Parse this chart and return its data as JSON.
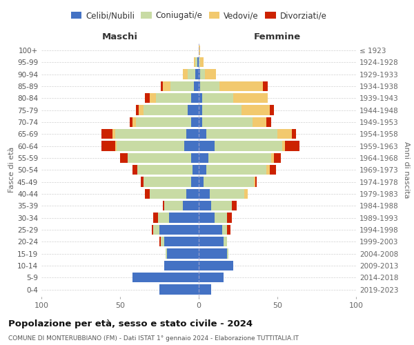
{
  "age_groups": [
    "0-4",
    "5-9",
    "10-14",
    "15-19",
    "20-24",
    "25-29",
    "30-34",
    "35-39",
    "40-44",
    "45-49",
    "50-54",
    "55-59",
    "60-64",
    "65-69",
    "70-74",
    "75-79",
    "80-84",
    "85-89",
    "90-94",
    "95-99",
    "100+"
  ],
  "birth_years": [
    "2019-2023",
    "2014-2018",
    "2009-2013",
    "2004-2008",
    "1999-2003",
    "1994-1998",
    "1989-1993",
    "1984-1988",
    "1979-1983",
    "1974-1978",
    "1969-1973",
    "1964-1968",
    "1959-1963",
    "1954-1958",
    "1949-1953",
    "1944-1948",
    "1939-1943",
    "1934-1938",
    "1929-1933",
    "1924-1928",
    "≤ 1923"
  ],
  "male": {
    "celibi": [
      25,
      42,
      22,
      20,
      22,
      25,
      19,
      10,
      8,
      5,
      4,
      5,
      9,
      8,
      5,
      7,
      5,
      3,
      2,
      1,
      0
    ],
    "coniugati": [
      0,
      0,
      0,
      1,
      2,
      4,
      7,
      12,
      23,
      30,
      35,
      40,
      43,
      45,
      35,
      28,
      22,
      15,
      5,
      1,
      0
    ],
    "vedovi": [
      0,
      0,
      0,
      0,
      0,
      0,
      0,
      0,
      0,
      0,
      0,
      0,
      1,
      2,
      2,
      3,
      4,
      5,
      3,
      1,
      0
    ],
    "divorziati": [
      0,
      0,
      0,
      0,
      1,
      1,
      3,
      1,
      3,
      2,
      3,
      5,
      9,
      7,
      2,
      2,
      3,
      1,
      0,
      0,
      0
    ]
  },
  "female": {
    "nubili": [
      8,
      16,
      22,
      18,
      16,
      15,
      10,
      8,
      7,
      3,
      5,
      6,
      10,
      5,
      2,
      2,
      2,
      1,
      1,
      0,
      0
    ],
    "coniugate": [
      0,
      0,
      0,
      1,
      2,
      3,
      8,
      13,
      22,
      32,
      38,
      40,
      43,
      45,
      32,
      25,
      20,
      12,
      3,
      1,
      0
    ],
    "vedove": [
      0,
      0,
      0,
      0,
      0,
      0,
      0,
      0,
      2,
      1,
      2,
      2,
      2,
      9,
      9,
      18,
      22,
      28,
      7,
      2,
      1
    ],
    "divorziate": [
      0,
      0,
      0,
      0,
      0,
      2,
      3,
      3,
      0,
      1,
      4,
      4,
      9,
      3,
      3,
      3,
      0,
      3,
      0,
      0,
      0
    ]
  },
  "colors": {
    "celibi": "#4472C4",
    "coniugati": "#c8dba4",
    "vedovi": "#f2c96e",
    "divorziati": "#cc2200"
  },
  "title": "Popolazione per età, sesso e stato civile - 2024",
  "subtitle": "COMUNE DI MONTERUBBIANO (FM) - Dati ISTAT 1° gennaio 2024 - Elaborazione TUTTITALIA.IT",
  "xlabel_left": "Maschi",
  "xlabel_right": "Femmine",
  "ylabel_left": "Fasce di età",
  "ylabel_right": "Anni di nascita",
  "xlim": 100,
  "legend_labels": [
    "Celibi/Nubili",
    "Coniugati/e",
    "Vedovi/e",
    "Divorziati/e"
  ],
  "bg_color": "#ffffff",
  "grid_color": "#cccccc"
}
